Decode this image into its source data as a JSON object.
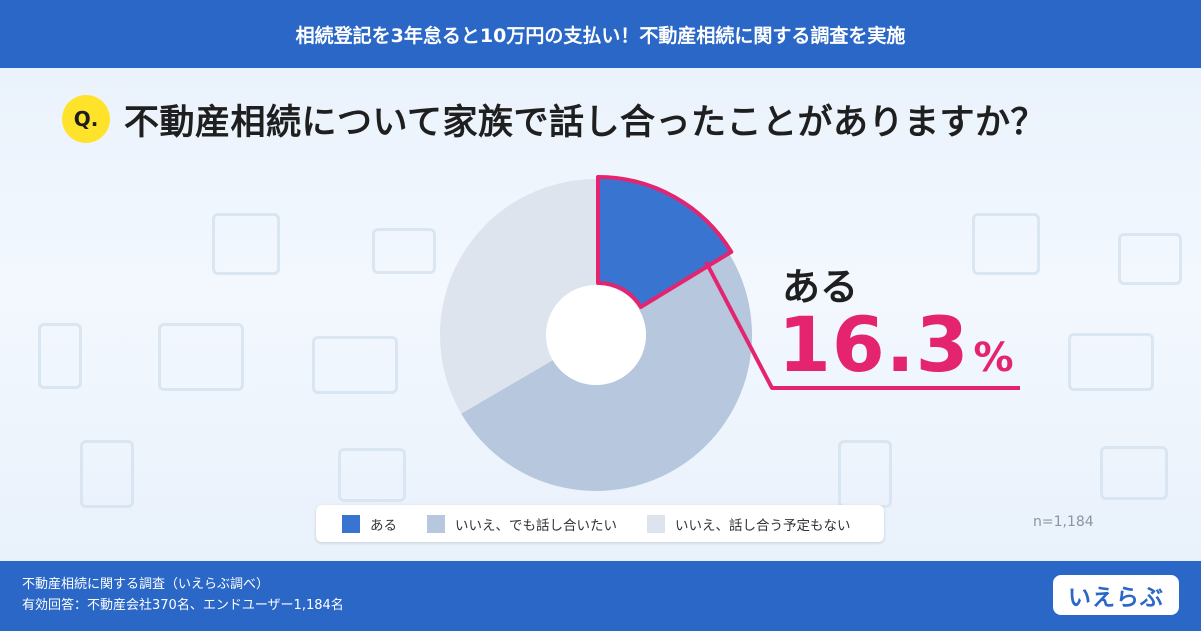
{
  "header": {
    "title": "相続登記を3年怠ると10万円の支払い！不動産相続に関する調査を実施"
  },
  "question": {
    "badge": "Q.",
    "text": "不動産相続について家族で話し合ったことがありますか？"
  },
  "callout": {
    "label": "ある",
    "value": "16.3",
    "unit": "%"
  },
  "n_label": "n=1,184",
  "chart_data": {
    "type": "pie",
    "style": "donut",
    "categories": [
      "ある",
      "いいえ、でも話し合いたい",
      "いいえ、話し合う予定もない"
    ],
    "values": [
      16.3,
      50.3,
      33.4
    ],
    "colors": [
      "#3a74d1",
      "#b7c7dd",
      "#dde4ee"
    ],
    "highlight": "ある",
    "highlight_color": "#e4246f",
    "legend_position": "bottom"
  },
  "footer": {
    "source_line1": "不動産相続に関する調査（いえらぶ調べ）",
    "source_line2": "有効回答：不動産会社370名、エンドユーザー1,184名",
    "logo": "いえらぶ"
  }
}
